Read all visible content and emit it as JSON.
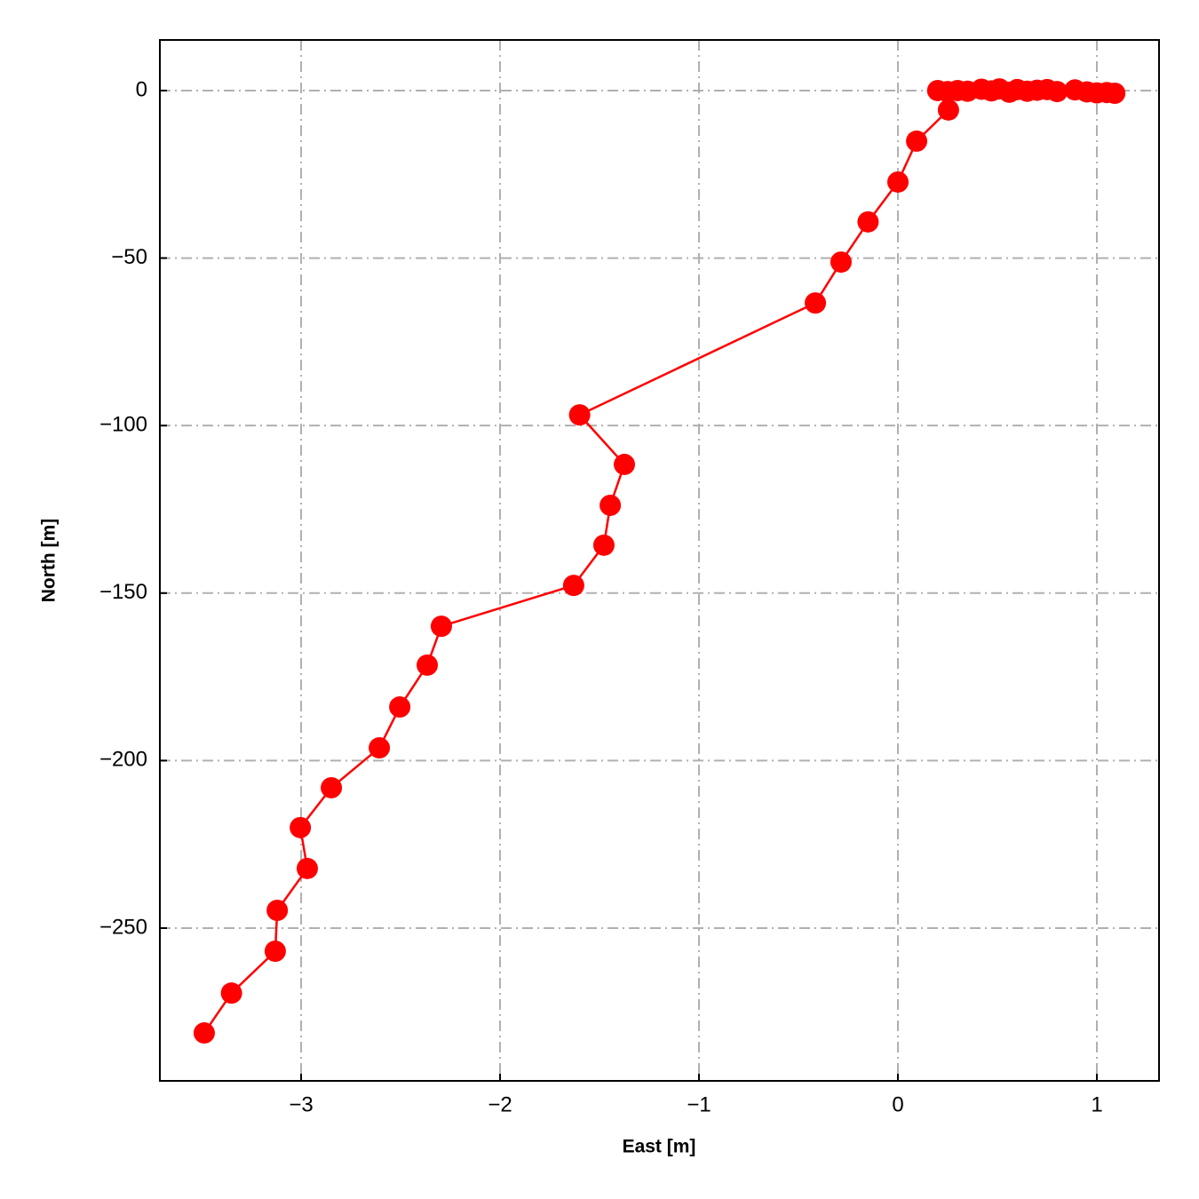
{
  "chart_data": {
    "type": "line",
    "x_label": "East [m]",
    "y_label": "North [m]",
    "x": [
      1.09,
      1.05,
      1.0,
      0.95,
      0.89,
      0.8,
      0.75,
      0.7,
      0.65,
      0.6,
      0.56,
      0.51,
      0.47,
      0.42,
      0.35,
      0.3,
      0.25,
      0.2,
      0.254,
      0.094,
      0.0,
      -0.15,
      -0.286,
      -0.415,
      -1.6,
      -1.375,
      -1.446,
      -1.478,
      -1.63,
      -2.295,
      -2.366,
      -2.504,
      -2.607,
      -2.848,
      -3.004,
      -2.969,
      -3.12,
      -3.13,
      -3.35,
      -3.487
    ],
    "values": [
      -0.8,
      -0.6,
      -0.7,
      -0.4,
      0.2,
      -0.3,
      0.3,
      0.1,
      -0.2,
      0.3,
      -0.5,
      0.5,
      -0.1,
      0.4,
      -0.2,
      0.0,
      -0.3,
      0.0,
      -5.8,
      -15.1,
      -27.3,
      -39.2,
      -51.2,
      -63.4,
      -96.8,
      -111.6,
      -123.8,
      -135.7,
      -147.7,
      -159.9,
      -171.5,
      -184.0,
      -196.2,
      -208.1,
      -220.0,
      -232.2,
      -244.7,
      -256.9,
      -269.4,
      -281.3
    ],
    "color": "#ff0000",
    "xlim": [
      -3.71,
      1.3125
    ],
    "ylim": [
      -295.6,
      15.1
    ],
    "xticks": [
      {
        "value": -3,
        "label": "−3"
      },
      {
        "value": -2,
        "label": "−2"
      },
      {
        "value": -1,
        "label": "−1"
      },
      0,
      1
    ],
    "yticks": [
      0,
      {
        "value": -50,
        "label": "−50"
      },
      {
        "value": -100,
        "label": "−100"
      },
      {
        "value": -150,
        "label": "−150"
      },
      {
        "value": -200,
        "label": "−200"
      },
      {
        "value": -250,
        "label": "−250"
      }
    ],
    "grid": true
  }
}
